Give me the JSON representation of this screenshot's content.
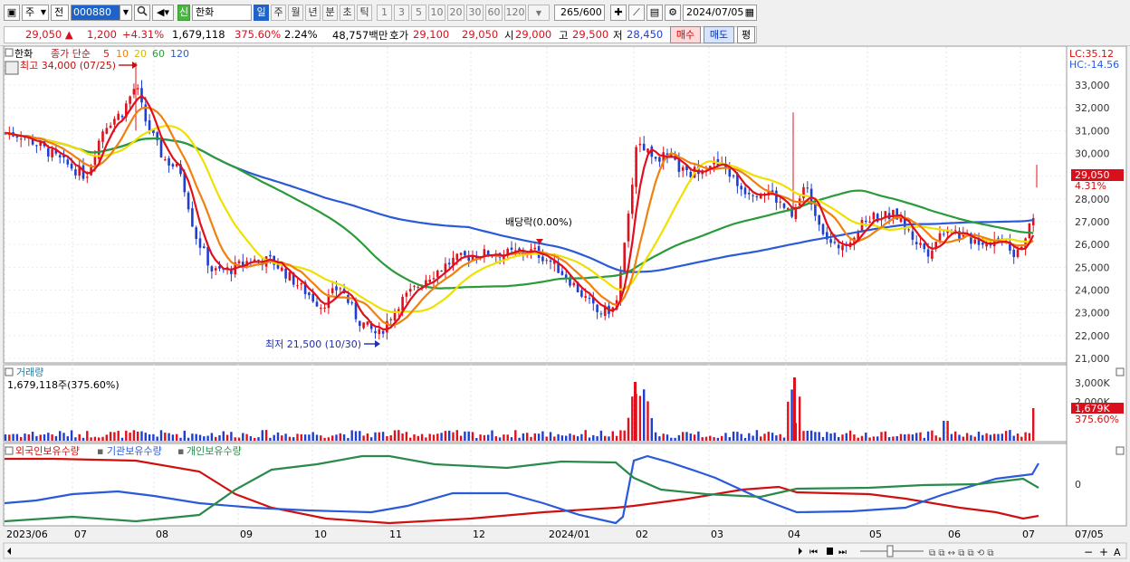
{
  "toolbar": {
    "market_type": "주",
    "period_type": "전",
    "code": "000880",
    "stock_badge": "신",
    "stock_name": "한화",
    "periods": [
      "일",
      "주",
      "월",
      "년",
      "분",
      "초",
      "틱"
    ],
    "intervals": [
      "1",
      "3",
      "5",
      "10",
      "20",
      "30",
      "60",
      "120"
    ],
    "count": "265",
    "count_total": "/600",
    "date": "2024/07/05"
  },
  "quote": {
    "price": "29,050",
    "change_arrow": "▲",
    "change": "1,200",
    "change_pct": "+4.31%",
    "volume": "1,679,118",
    "volume_ratio": "375.60%",
    "turnover": "2.24%",
    "amount": "48,757백만",
    "ask_label": "호가",
    "ask": "29,100",
    "bid": "29,050",
    "open_label": "시",
    "open": "29,000",
    "high_label": "고",
    "high": "29,500",
    "low_label": "저",
    "low": "28,450",
    "buy_btn": "매수",
    "sell_btn": "매도",
    "eval_btn": "평"
  },
  "price_pane": {
    "title": "한화",
    "legend_prefix": "종가 단순",
    "ma_legend": [
      {
        "label": "5",
        "color": "#e0101c"
      },
      {
        "label": "10",
        "color": "#f08010"
      },
      {
        "label": "20",
        "color": "#e8d000"
      },
      {
        "label": "60",
        "color": "#2a9a3a"
      },
      {
        "label": "120",
        "color": "#2a5ad8"
      }
    ],
    "high_note": "최고 34,000 (07/25)",
    "low_note": "최저 21,500 (10/30)",
    "dividend_note": "배당락(0.00%)",
    "lc": "LC:35.12",
    "hc": "HC:-14.56",
    "last_price_tag": "29,050",
    "last_pct_tag": "4.31%",
    "y_ticks": [
      "33,000",
      "32,000",
      "31,000",
      "30,000",
      "29,000",
      "28,000",
      "27,000",
      "26,000",
      "25,000",
      "24,000",
      "23,000",
      "22,000",
      "21,000"
    ]
  },
  "volume_pane": {
    "title": "거래량",
    "value_note": "1,679,118주(375.60%)",
    "y_ticks": [
      "3,000K",
      "2,000K"
    ],
    "last_tag": "1,679K",
    "last_pct": "375.60%"
  },
  "holdings_pane": {
    "legend": [
      {
        "label": "외국인보유수량",
        "color": "#d01010"
      },
      {
        "label": "기관보유수량",
        "color": "#2a5ad8"
      },
      {
        "label": "개인보유수량",
        "color": "#2a8a4a"
      }
    ],
    "zero_tick": "0"
  },
  "x_axis": {
    "labels": [
      "2023/06",
      "07",
      "08",
      "09",
      "10",
      "11",
      "12",
      "2024/01",
      "02",
      "03",
      "04",
      "05",
      "06",
      "07"
    ],
    "right_label": "07/05"
  },
  "colors": {
    "up": "#e0101c",
    "down": "#1f3fd0",
    "ma5": "#e0101c",
    "ma10": "#f08010",
    "ma20": "#f0e000",
    "ma60": "#2a9a3a",
    "ma120": "#2a5ad8"
  }
}
